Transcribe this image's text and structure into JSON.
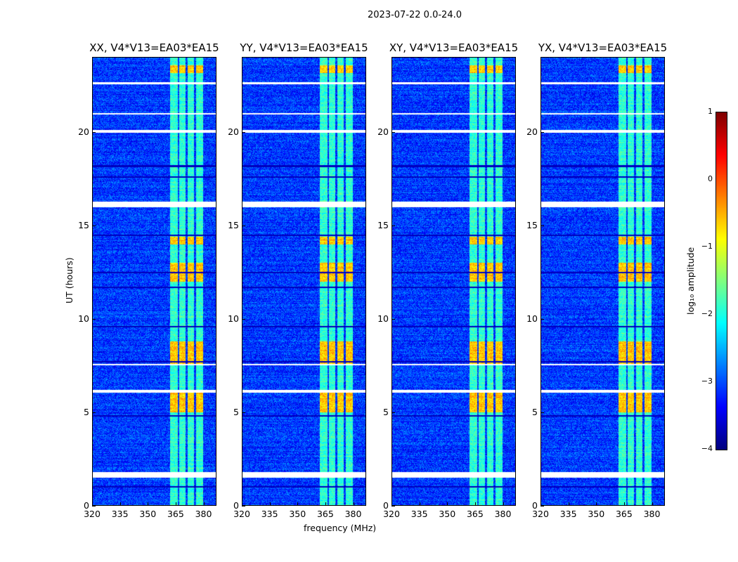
{
  "suptitle": "2023-07-22 0.0-24.0",
  "chart_data": {
    "type": "heatmap",
    "xlabel": "frequency (MHz)",
    "ylabel": "UT (hours)",
    "xlim": [
      320,
      387
    ],
    "ylim": [
      0,
      24
    ],
    "xticks": [
      "320",
      "335",
      "350",
      "365",
      "380"
    ],
    "xtick_values": [
      320,
      335,
      350,
      365,
      380
    ],
    "yticks": [
      "0",
      "5",
      "10",
      "15",
      "20"
    ],
    "ytick_values": [
      0,
      5,
      10,
      15,
      20
    ],
    "panels": [
      {
        "title": "XX, V4*V13=EA03*EA15"
      },
      {
        "title": "YY, V4*V13=EA03*EA15"
      },
      {
        "title": "XY, V4*V13=EA03*EA15"
      },
      {
        "title": "YX, V4*V13=EA03*EA15"
      }
    ],
    "colorbar": {
      "label": "log₁₀ amplitude",
      "range": [
        -4,
        1
      ],
      "ticks": [
        "1",
        "0",
        "−1",
        "−2",
        "−3",
        "−4"
      ],
      "tick_values": [
        1,
        0,
        -1,
        -2,
        -3,
        -4
      ],
      "colormap": "jet"
    },
    "background_level": -3.1,
    "rfi_subbands_mhz": [
      [
        362,
        366
      ],
      [
        367,
        370.5
      ],
      [
        371.5,
        375
      ],
      [
        376,
        380
      ]
    ],
    "rfi_level_range": [
      -2.2,
      -0.3
    ],
    "strong_rfi_hours": [
      [
        5.0,
        6.1
      ],
      [
        7.6,
        8.8
      ],
      [
        12.0,
        13.0
      ],
      [
        14.0,
        14.4
      ],
      [
        23.2,
        23.6
      ]
    ],
    "flagged_hours": [
      [
        1.5,
        1.8
      ],
      [
        6.05,
        6.2
      ],
      [
        7.5,
        7.6
      ],
      [
        16.0,
        16.3
      ],
      [
        20.0,
        20.15
      ],
      [
        20.95,
        21.05
      ],
      [
        22.6,
        22.7
      ]
    ],
    "dark_hours": [
      1.0,
      4.8,
      7.7,
      9.6,
      11.7,
      12.5,
      14.5,
      17.6,
      18.2
    ]
  }
}
